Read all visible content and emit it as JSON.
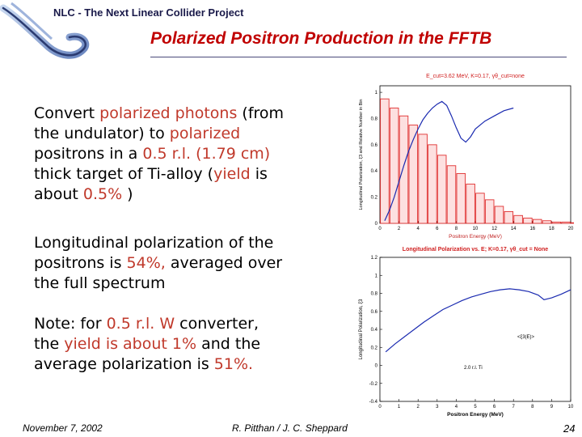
{
  "header": {
    "project_title": "NLC - The Next Linear Collider Project",
    "slide_title": "Polarized Positron Production in the FFTB"
  },
  "body": {
    "p1": {
      "l1_a": "Convert ",
      "l1_b": "polarized photons",
      "l1_c": " (from",
      "l2_a": "the undulator) to ",
      "l2_b": "polarized",
      "l3_a": "positrons in a ",
      "l3_b": "0.5 r.l. (1.79 cm)",
      "l4_a": "thick target of Ti-alloy (",
      "l4_b": "yield",
      "l4_c": " is",
      "l5_a": "about ",
      "l5_b": "0.5%",
      "l5_c": " )"
    },
    "p2": {
      "l1": "Longitudinal polarization of the",
      "l2_a": "positrons is ",
      "l2_b": "54%,",
      "l2_c": " averaged over",
      "l3": "the full spectrum"
    },
    "p3": {
      "l1_a": "Note: for ",
      "l1_b": "0.5 r.l. W",
      "l1_c": " converter,",
      "l2_a": "the ",
      "l2_b": "yield is about 1%",
      "l2_c": " and the",
      "l3_a": "average polarization is ",
      "l3_b": "51%."
    }
  },
  "plot1": {
    "title": "E_cut=3.62 MeV, K=0.17, γθ_cut=none",
    "xlabel": "Positron Energy (MeV)",
    "ylabel": "Longitudinal Polarization, ξ3 and Relative Number in Bin",
    "x_ticks": [
      "0",
      "2",
      "4",
      "6",
      "8",
      "10",
      "12",
      "14",
      "16",
      "18",
      "20"
    ],
    "y_ticks": [
      "0",
      "0.2",
      "0.4",
      "0.6",
      "0.8",
      "1"
    ],
    "bars": [
      0.95,
      0.88,
      0.82,
      0.75,
      0.68,
      0.6,
      0.52,
      0.44,
      0.38,
      0.3,
      0.23,
      0.18,
      0.13,
      0.09,
      0.06,
      0.04,
      0.03,
      0.02,
      0.01,
      0.01,
      0.005
    ],
    "curve_x": [
      0.5,
      1,
      1.5,
      2,
      2.5,
      3,
      3.5,
      4,
      4.5,
      5,
      5.5,
      6,
      6.5,
      7,
      7.5,
      8,
      8.5,
      9,
      9.5,
      10,
      11,
      12,
      13,
      14
    ],
    "curve_y": [
      0.02,
      0.1,
      0.2,
      0.32,
      0.44,
      0.55,
      0.64,
      0.72,
      0.79,
      0.84,
      0.88,
      0.91,
      0.93,
      0.9,
      0.82,
      0.73,
      0.65,
      0.62,
      0.66,
      0.72,
      0.78,
      0.82,
      0.86,
      0.88
    ],
    "colors": {
      "bars": "#e03030",
      "curve": "#1a2ab0",
      "title": "#d02020"
    }
  },
  "plot2": {
    "title": "Longitudinal Polarization vs. E; K=0.17, γθ_cut = None",
    "xlabel": "Positron Energy (MeV)",
    "ylabel": "Longitudinal Polarization, ξ3",
    "annotation_ti": "2.0 r.l. Ti",
    "annotation_avg": "<ξ3(E)>",
    "x_ticks": [
      "0",
      "1",
      "2",
      "3",
      "4",
      "5",
      "6",
      "7",
      "8",
      "9",
      "10"
    ],
    "y_ticks": [
      "-0.4",
      "-0.2",
      "0",
      "0.2",
      "0.4",
      "0.6",
      "0.8",
      "1",
      "1.2"
    ],
    "curve_x": [
      0.3,
      0.8,
      1.3,
      1.8,
      2.3,
      2.8,
      3.3,
      3.8,
      4.3,
      4.8,
      5.3,
      5.8,
      6.3,
      6.8,
      7.3,
      7.8,
      8.3,
      8.6,
      9.0,
      9.5,
      10.0
    ],
    "curve_y": [
      0.15,
      0.24,
      0.32,
      0.4,
      0.48,
      0.55,
      0.62,
      0.67,
      0.72,
      0.76,
      0.79,
      0.82,
      0.84,
      0.85,
      0.84,
      0.82,
      0.78,
      0.73,
      0.75,
      0.79,
      0.84
    ],
    "colors": {
      "curve": "#1a2ab0",
      "title": "#d02020"
    }
  },
  "footer": {
    "date": "November 7, 2002",
    "authors": "R. Pitthan / J. C. Sheppard",
    "page": "24"
  }
}
